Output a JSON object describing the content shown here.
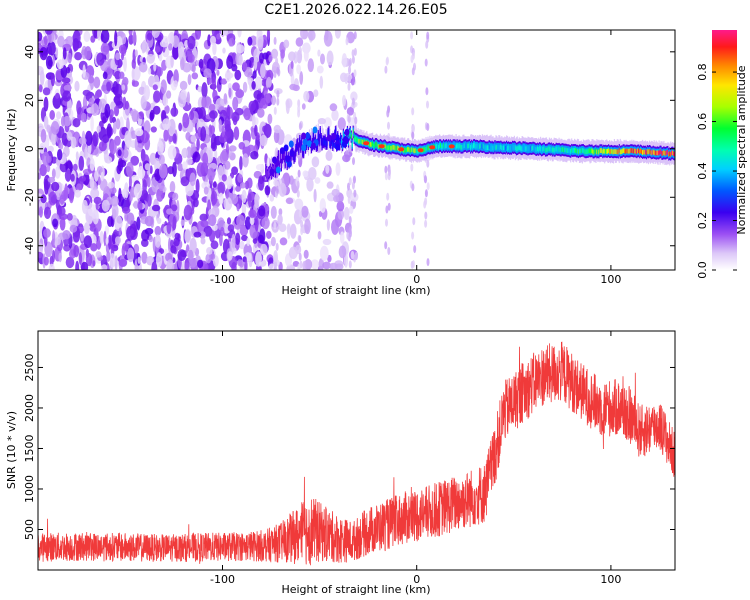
{
  "figure_title": "C2E1.2026.022.14.26.E05",
  "chart_data": [
    {
      "type": "heatmap",
      "title": "C2E1.2026.022.14.26.E05",
      "xlabel": "Height of straight line (km)",
      "ylabel": "Frequency (Hz)",
      "xlim": [
        -195,
        133
      ],
      "ylim": [
        -50,
        49
      ],
      "xticks": [
        -100,
        0,
        100
      ],
      "yticks": [
        -40,
        -20,
        0,
        20,
        40
      ],
      "colorbar": {
        "label": "Normalized spectral amplitude",
        "range": [
          0,
          0.97
        ],
        "ticks": [
          0.0,
          0.2,
          0.4,
          0.6,
          0.8
        ],
        "colormap": [
          "#ffffff",
          "#dcc7f8",
          "#9b4ff3",
          "#5a00e6",
          "#1a00ff",
          "#00a8ff",
          "#00ffd0",
          "#00ff44",
          "#c8ff00",
          "#ffe600",
          "#ff8a00",
          "#ff1a1a",
          "#ff1a8a"
        ]
      },
      "features": {
        "noise_region_x": [
          -195,
          -32
        ],
        "dense_noise_x": [
          -195,
          -75
        ],
        "sparse_noise_x": [
          -75,
          -32
        ],
        "trace_points": [
          [
            -78,
            -11
          ],
          [
            -70,
            -5
          ],
          [
            -60,
            1
          ],
          [
            -50,
            5
          ],
          [
            -40,
            4
          ],
          [
            -32,
            4
          ],
          [
            -25,
            2
          ],
          [
            -10,
            0
          ],
          [
            0,
            -1
          ],
          [
            10,
            1
          ],
          [
            30,
            1
          ],
          [
            60,
            0
          ],
          [
            85,
            -1
          ],
          [
            110,
            -1
          ],
          [
            133,
            -2
          ]
        ],
        "trace_amplitude": [
          0.2,
          0.25,
          0.3,
          0.3,
          0.35,
          0.6,
          0.6,
          0.65,
          0.6,
          0.5,
          0.45,
          0.45,
          0.55,
          0.85,
          0.9
        ]
      }
    },
    {
      "type": "line",
      "xlabel": "Height of straight line (km)",
      "ylabel": "SNR (10 * v/v)",
      "xlim": [
        -195,
        133
      ],
      "ylim": [
        0,
        2950
      ],
      "xticks": [
        -100,
        0,
        100
      ],
      "yticks": [
        500,
        1000,
        1500,
        2000,
        2500
      ],
      "series": [
        {
          "name": "SNR",
          "color": "#f03a3a",
          "x": [
            -195,
            -170,
            -150,
            -130,
            -110,
            -90,
            -78,
            -70,
            -62,
            -55,
            -48,
            -40,
            -33,
            -25,
            -15,
            -5,
            5,
            15,
            25,
            35,
            40,
            45,
            55,
            65,
            75,
            85,
            95,
            105,
            110,
            115,
            125,
            133
          ],
          "center": [
            280,
            290,
            280,
            270,
            280,
            290,
            300,
            340,
            420,
            500,
            450,
            380,
            350,
            480,
            560,
            650,
            700,
            780,
            860,
            950,
            1400,
            1950,
            2200,
            2400,
            2450,
            2200,
            2000,
            2000,
            1900,
            1700,
            1800,
            1400
          ],
          "spread": [
            180,
            180,
            180,
            170,
            180,
            180,
            200,
            250,
            350,
            450,
            350,
            300,
            250,
            300,
            320,
            330,
            340,
            350,
            360,
            380,
            400,
            380,
            380,
            380,
            380,
            360,
            360,
            360,
            360,
            340,
            320,
            300
          ]
        }
      ]
    }
  ]
}
